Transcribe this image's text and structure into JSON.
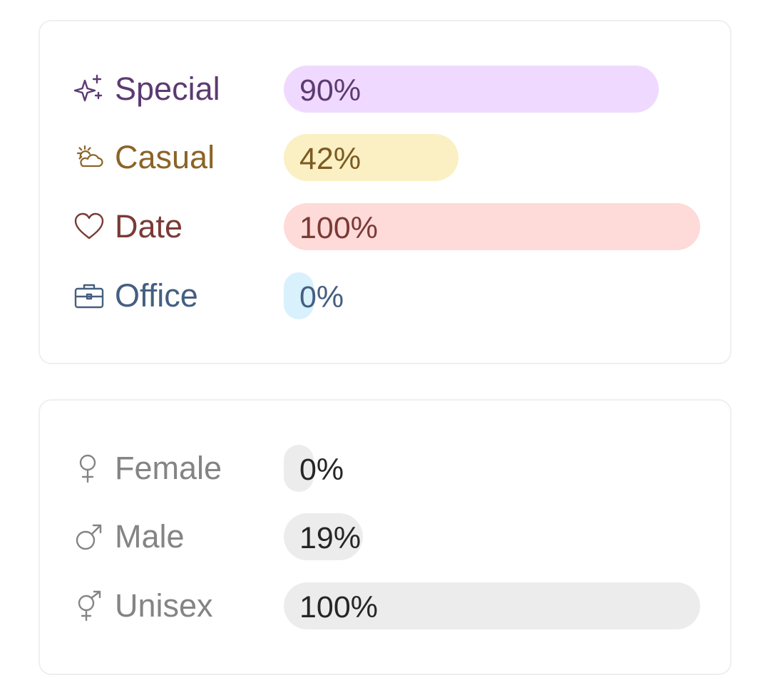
{
  "occasion": {
    "rows": [
      {
        "label": "Special",
        "percent_text": "90%",
        "value": 0.9,
        "icon": "sparkles-icon",
        "text_color": "#5c3a72",
        "bar_color": "#f0d9fe",
        "value_color": "#5c3a72"
      },
      {
        "label": "Casual",
        "percent_text": "42%",
        "value": 0.42,
        "icon": "sun-cloud-icon",
        "text_color": "#8a6428",
        "bar_color": "#faf0c3",
        "value_color": "#7d5a22"
      },
      {
        "label": "Date",
        "percent_text": "100%",
        "value": 1.0,
        "icon": "heart-icon",
        "text_color": "#7a3a36",
        "bar_color": "#fedad8",
        "value_color": "#7a3a36"
      },
      {
        "label": "Office",
        "percent_text": "0%",
        "value": 0.0,
        "icon": "briefcase-icon",
        "text_color": "#445f80",
        "bar_color": "#d9f0fd",
        "value_color": "#445f80"
      }
    ]
  },
  "gender": {
    "rows": [
      {
        "label": "Female",
        "percent_text": "0%",
        "value": 0.0,
        "icon": "female-symbol-icon",
        "text_color": "#848484",
        "bar_color": "#ececec",
        "value_color": "#262626"
      },
      {
        "label": "Male",
        "percent_text": "19%",
        "value": 0.19,
        "icon": "male-symbol-icon",
        "text_color": "#848484",
        "bar_color": "#ececec",
        "value_color": "#262626"
      },
      {
        "label": "Unisex",
        "percent_text": "100%",
        "value": 1.0,
        "icon": "unisex-symbol-icon",
        "text_color": "#848484",
        "bar_color": "#ececec",
        "value_color": "#262626"
      }
    ]
  }
}
